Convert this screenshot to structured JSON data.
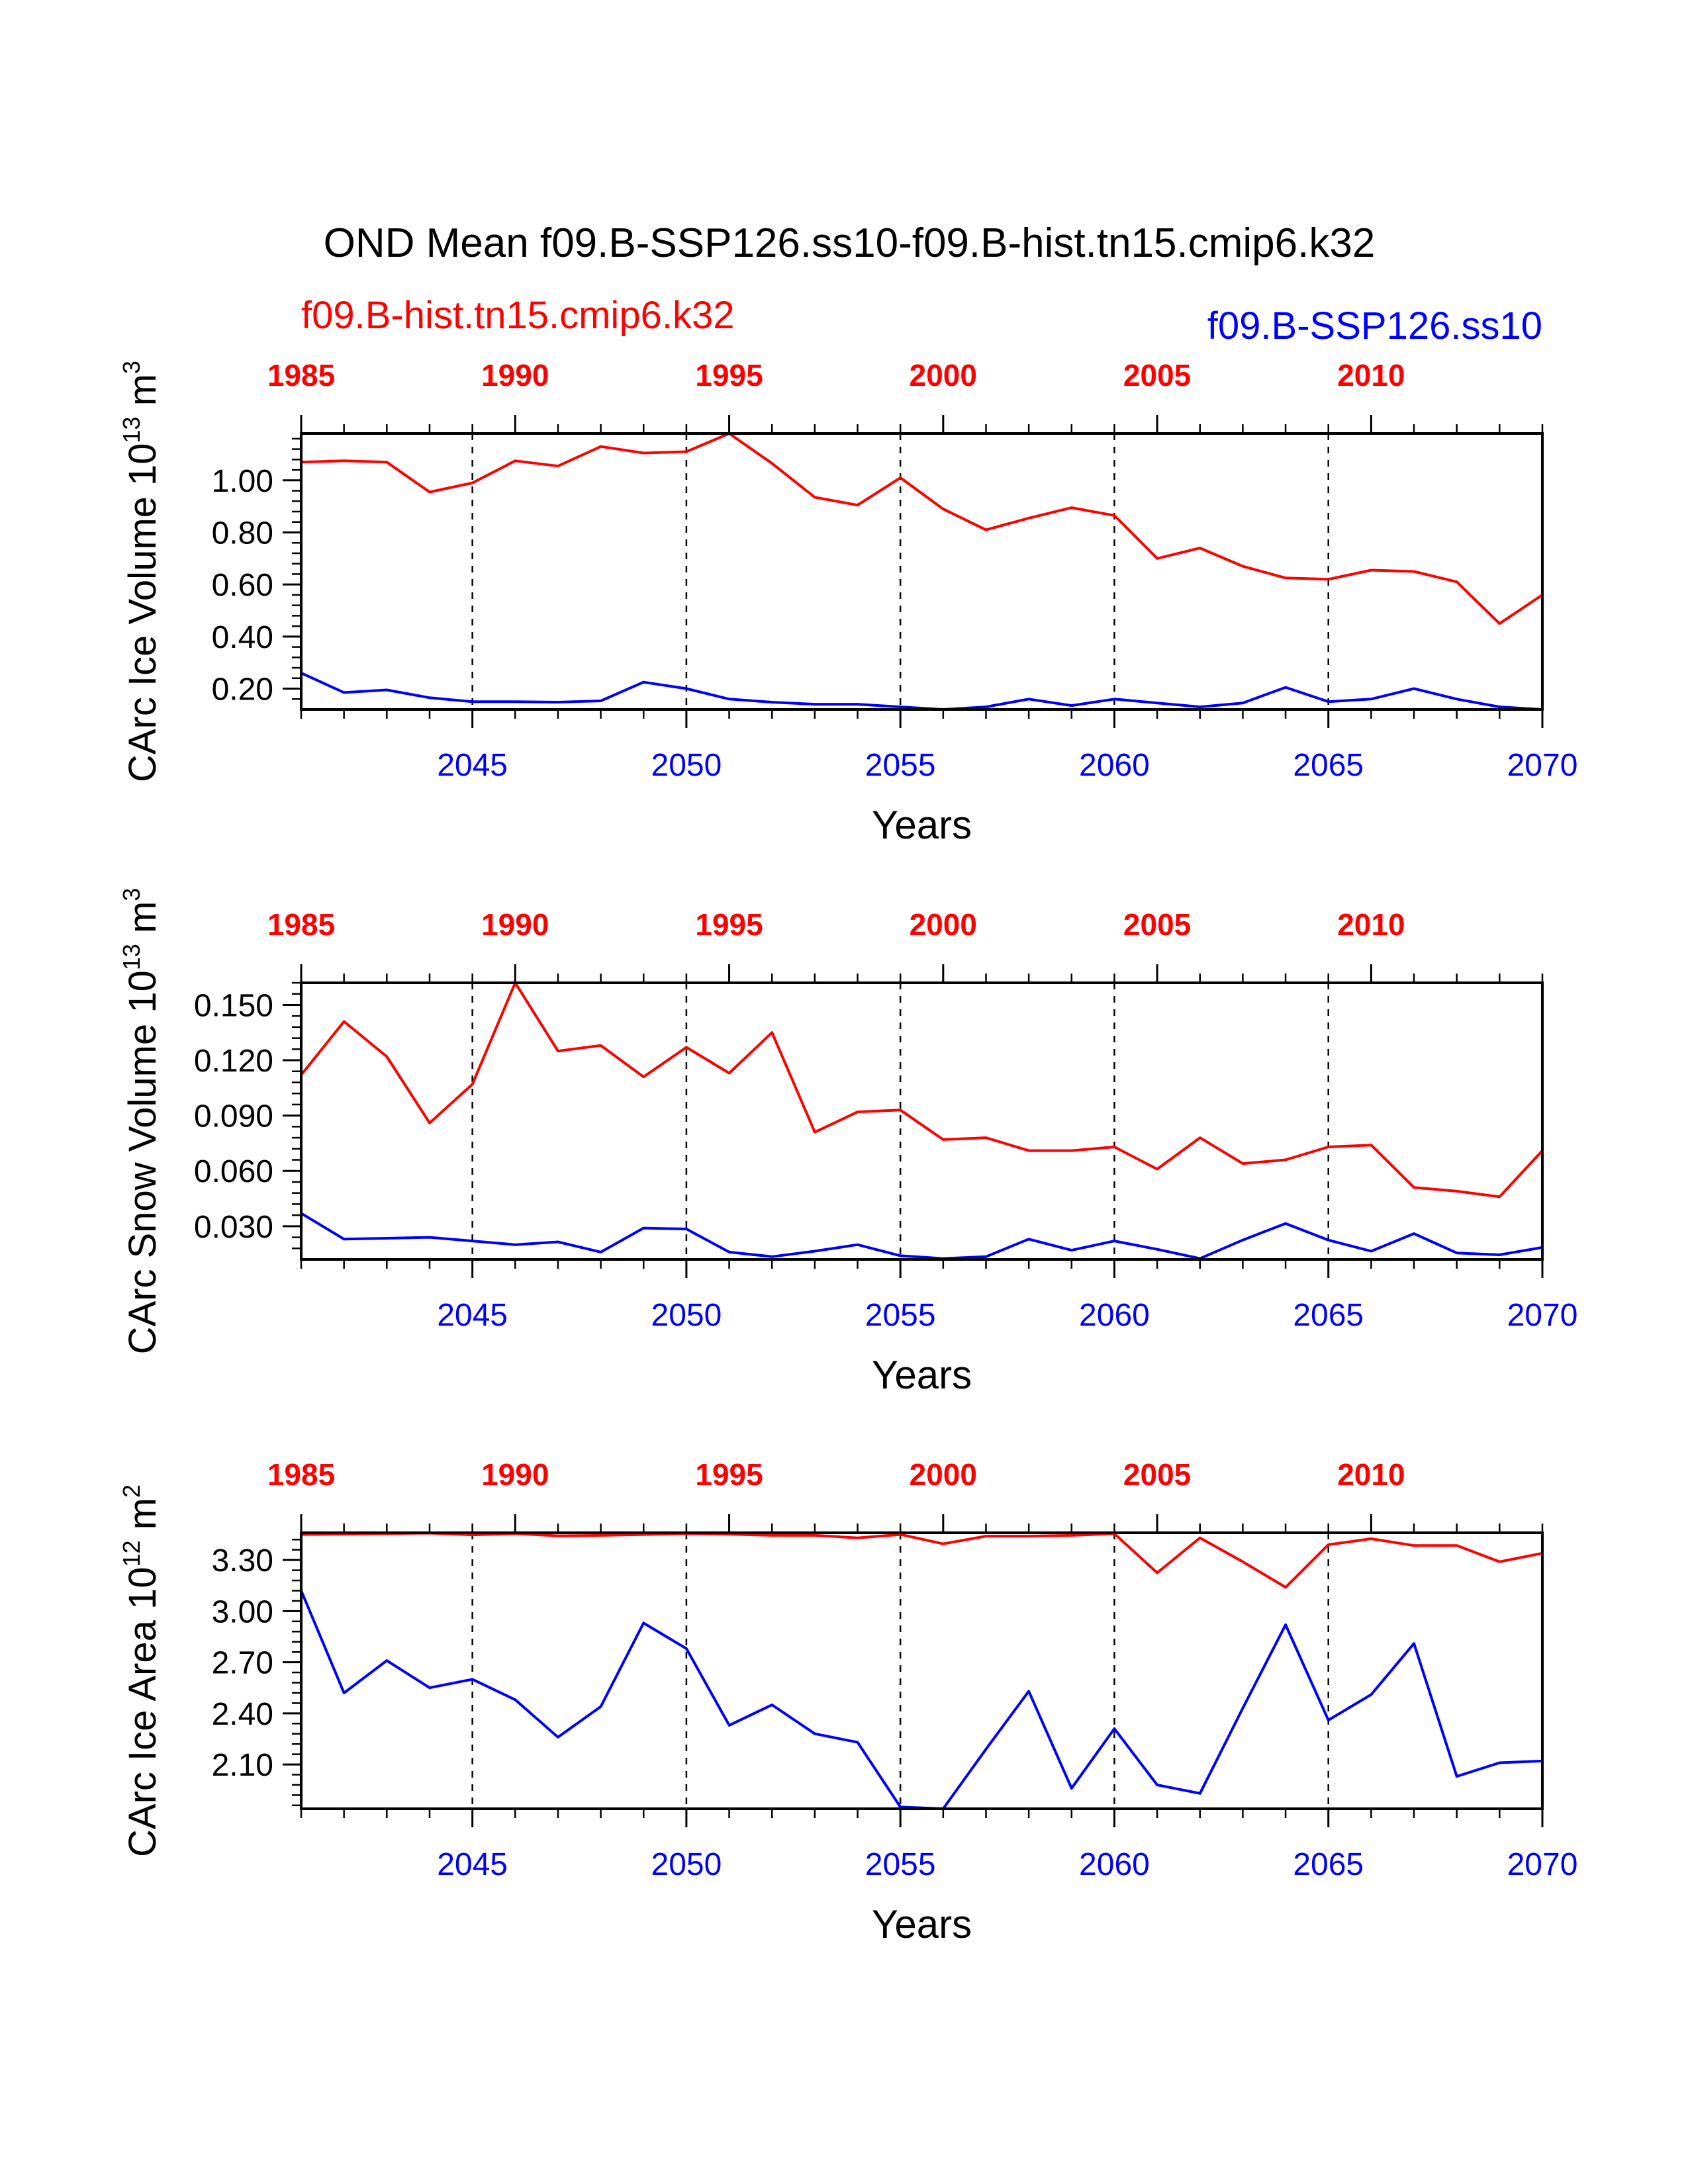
{
  "title": "OND Mean f09.B-SSP126.ss10-f09.B-hist.tn15.cmip6.k32",
  "legend": {
    "red_label": "f09.B-hist.tn15.cmip6.k32",
    "blue_label": "f09.B-SSP126.ss10"
  },
  "colors": {
    "red": "#ff0000",
    "blue": "#0000ff",
    "axis": "#000000"
  },
  "chart_data": [
    {
      "type": "line",
      "ylabel": "CArc Ice Volume 10",
      "ylabel_exp": "13",
      "ylabel_unit": " m",
      "ylabel_unit_exp": "3",
      "xlabel": "Years",
      "ylim": [
        0.12,
        1.18
      ],
      "yticks": [
        0.2,
        0.4,
        0.6,
        0.8,
        1.0
      ],
      "ytick_labels": [
        "0.20",
        "0.40",
        "0.60",
        "0.80",
        "1.00"
      ],
      "y_minor_step": 0.04,
      "top_axis": {
        "range": [
          1985,
          2014
        ],
        "ticks": [
          1985,
          1990,
          1995,
          2000,
          2005,
          2010
        ],
        "labels": [
          "1985",
          "1990",
          "1995",
          "2000",
          "2005",
          "2010"
        ]
      },
      "bottom_axis": {
        "range": [
          2041,
          2070
        ],
        "ticks": [
          2045,
          2050,
          2055,
          2060,
          2065,
          2070
        ],
        "labels": [
          "2045",
          "2050",
          "2055",
          "2060",
          "2065",
          "2070"
        ]
      },
      "grid": "dashed vertical lines at 2045, 2050, 2055, 2060, 2065",
      "series": [
        {
          "axis": "top",
          "color": "red",
          "x": [
            1985,
            1986,
            1987,
            1988,
            1989,
            1990,
            1991,
            1992,
            1993,
            1994,
            1995,
            1996,
            1997,
            1998,
            1999,
            2000,
            2001,
            2002,
            2003,
            2004,
            2005,
            2006,
            2007,
            2008,
            2009,
            2010,
            2011,
            2012,
            2013,
            2014
          ],
          "values": [
            1.07,
            1.075,
            1.07,
            0.955,
            0.99,
            1.075,
            1.055,
            1.13,
            1.105,
            1.11,
            1.18,
            1.065,
            0.935,
            0.905,
            1.01,
            0.89,
            0.81,
            0.855,
            0.895,
            0.865,
            0.7,
            0.74,
            0.67,
            0.625,
            0.62,
            0.655,
            0.65,
            0.61,
            0.45,
            0.56
          ]
        },
        {
          "axis": "bottom",
          "color": "blue",
          "x": [
            2041,
            2042,
            2043,
            2044,
            2045,
            2046,
            2047,
            2048,
            2049,
            2050,
            2051,
            2052,
            2053,
            2054,
            2055,
            2056,
            2057,
            2058,
            2059,
            2060,
            2061,
            2062,
            2063,
            2064,
            2065,
            2066,
            2067,
            2068,
            2069,
            2070
          ],
          "values": [
            0.26,
            0.185,
            0.195,
            0.165,
            0.15,
            0.15,
            0.148,
            0.153,
            0.225,
            0.2,
            0.16,
            0.148,
            0.14,
            0.14,
            0.13,
            0.12,
            0.13,
            0.16,
            0.135,
            0.16,
            0.145,
            0.13,
            0.145,
            0.205,
            0.15,
            0.16,
            0.2,
            0.16,
            0.13,
            0.12
          ]
        }
      ]
    },
    {
      "type": "line",
      "ylabel": "CArc Snow Volume 10",
      "ylabel_exp": "13",
      "ylabel_unit": " m",
      "ylabel_unit_exp": "3",
      "xlabel": "Years",
      "ylim": [
        0.012,
        0.162
      ],
      "yticks": [
        0.03,
        0.06,
        0.09,
        0.12,
        0.15
      ],
      "ytick_labels": [
        "0.030",
        "0.060",
        "0.090",
        "0.120",
        "0.150"
      ],
      "y_minor_step": 0.006,
      "top_axis": {
        "range": [
          1985,
          2014
        ],
        "ticks": [
          1985,
          1990,
          1995,
          2000,
          2005,
          2010
        ],
        "labels": [
          "1985",
          "1990",
          "1995",
          "2000",
          "2005",
          "2010"
        ]
      },
      "bottom_axis": {
        "range": [
          2041,
          2070
        ],
        "ticks": [
          2045,
          2050,
          2055,
          2060,
          2065,
          2070
        ],
        "labels": [
          "2045",
          "2050",
          "2055",
          "2060",
          "2065",
          "2070"
        ]
      },
      "grid": "dashed vertical lines at 2045, 2050, 2055, 2060, 2065",
      "series": [
        {
          "axis": "top",
          "color": "red",
          "x": [
            1985,
            1986,
            1987,
            1988,
            1989,
            1990,
            1991,
            1992,
            1993,
            1994,
            1995,
            1996,
            1997,
            1998,
            1999,
            2000,
            2001,
            2002,
            2003,
            2004,
            2005,
            2006,
            2007,
            2008,
            2009,
            2010,
            2011,
            2012,
            2013,
            2014
          ],
          "values": [
            0.112,
            0.141,
            0.122,
            0.086,
            0.107,
            0.162,
            0.125,
            0.128,
            0.111,
            0.127,
            0.113,
            0.135,
            0.081,
            0.092,
            0.093,
            0.077,
            0.078,
            0.071,
            0.071,
            0.073,
            0.061,
            0.078,
            0.064,
            0.066,
            0.073,
            0.074,
            0.051,
            0.049,
            0.046,
            0.071
          ]
        },
        {
          "axis": "bottom",
          "color": "blue",
          "x": [
            2041,
            2042,
            2043,
            2044,
            2045,
            2046,
            2047,
            2048,
            2049,
            2050,
            2051,
            2052,
            2053,
            2054,
            2055,
            2056,
            2057,
            2058,
            2059,
            2060,
            2061,
            2062,
            2063,
            2064,
            2065,
            2066,
            2067,
            2068,
            2069,
            2070
          ],
          "values": [
            0.037,
            0.023,
            0.0235,
            0.024,
            0.022,
            0.02,
            0.0215,
            0.016,
            0.029,
            0.0285,
            0.016,
            0.0135,
            0.0165,
            0.02,
            0.014,
            0.0125,
            0.0135,
            0.023,
            0.017,
            0.022,
            0.0175,
            0.0125,
            0.0225,
            0.0315,
            0.0225,
            0.0165,
            0.026,
            0.0155,
            0.0145,
            0.0185
          ]
        }
      ]
    },
    {
      "type": "line",
      "ylabel": "CArc Ice Area 10",
      "ylabel_exp": "12",
      "ylabel_unit": " m",
      "ylabel_unit_exp": "2",
      "xlabel": "Years",
      "ylim": [
        1.84,
        3.46
      ],
      "yticks": [
        2.1,
        2.4,
        2.7,
        3.0,
        3.3
      ],
      "ytick_labels": [
        "2.10",
        "2.40",
        "2.70",
        "3.00",
        "3.30"
      ],
      "y_minor_step": 0.06,
      "top_axis": {
        "range": [
          1985,
          2014
        ],
        "ticks": [
          1985,
          1990,
          1995,
          2000,
          2005,
          2010
        ],
        "labels": [
          "1985",
          "1990",
          "1995",
          "2000",
          "2005",
          "2010"
        ]
      },
      "bottom_axis": {
        "range": [
          2041,
          2070
        ],
        "ticks": [
          2045,
          2050,
          2055,
          2060,
          2065,
          2070
        ],
        "labels": [
          "2045",
          "2050",
          "2055",
          "2060",
          "2065",
          "2070"
        ]
      },
      "grid": "dashed vertical lines at 2045, 2050, 2055, 2060, 2065",
      "series": [
        {
          "axis": "top",
          "color": "red",
          "x": [
            1985,
            1986,
            1987,
            1988,
            1989,
            1990,
            1991,
            1992,
            1993,
            1994,
            1995,
            1996,
            1997,
            1998,
            1999,
            2000,
            2001,
            2002,
            2003,
            2004,
            2005,
            2006,
            2007,
            2008,
            2009,
            2010,
            2011,
            2012,
            2013,
            2014
          ],
          "values": [
            3.45,
            3.452,
            3.455,
            3.458,
            3.448,
            3.455,
            3.442,
            3.445,
            3.45,
            3.455,
            3.452,
            3.445,
            3.445,
            3.43,
            3.45,
            3.395,
            3.44,
            3.44,
            3.445,
            3.455,
            3.225,
            3.43,
            3.29,
            3.14,
            3.39,
            3.425,
            3.385,
            3.385,
            3.29,
            3.34
          ]
        },
        {
          "axis": "bottom",
          "color": "blue",
          "x": [
            2041,
            2042,
            2043,
            2044,
            2045,
            2046,
            2047,
            2048,
            2049,
            2050,
            2051,
            2052,
            2053,
            2054,
            2055,
            2056,
            2057,
            2058,
            2059,
            2060,
            2061,
            2062,
            2063,
            2064,
            2065,
            2066,
            2067,
            2068,
            2069,
            2070
          ],
          "values": [
            3.12,
            2.52,
            2.71,
            2.55,
            2.6,
            2.48,
            2.26,
            2.44,
            2.93,
            2.78,
            2.33,
            2.45,
            2.28,
            2.23,
            1.85,
            1.84,
            2.19,
            2.53,
            1.96,
            2.31,
            1.98,
            1.93,
            2.43,
            2.92,
            2.36,
            2.51,
            2.81,
            2.03,
            2.11,
            2.12
          ]
        }
      ]
    }
  ]
}
